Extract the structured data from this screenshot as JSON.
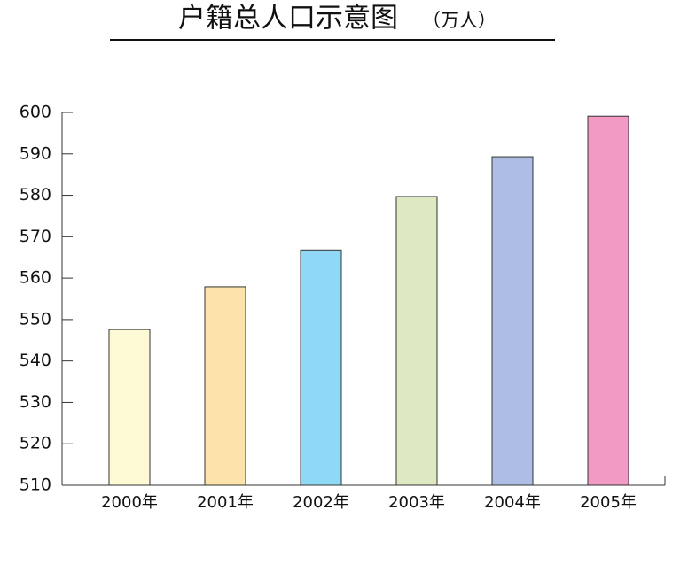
{
  "chart_data": {
    "type": "bar",
    "title": "户籍总人口示意图",
    "subtitle": "（万人）",
    "categories": [
      "2000年",
      "2001年",
      "2002年",
      "2003年",
      "2004年",
      "2005年"
    ],
    "values": [
      547.6,
      557.9,
      566.8,
      579.7,
      589.3,
      599.1
    ],
    "colors": [
      "#fefad6",
      "#fde3a9",
      "#8fd9f7",
      "#dde9c1",
      "#adbde3",
      "#f29ac3"
    ],
    "ylim": [
      510,
      600
    ],
    "yticks": [
      510,
      520,
      530,
      540,
      550,
      560,
      570,
      580,
      590,
      600
    ]
  }
}
